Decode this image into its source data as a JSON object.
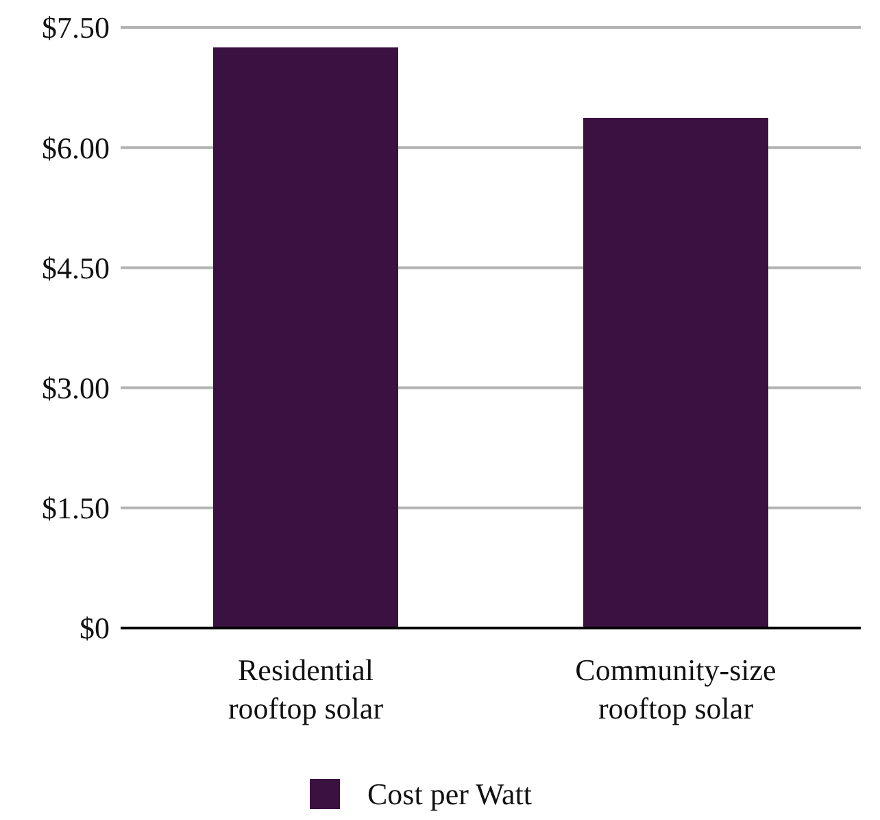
{
  "chart_data": {
    "type": "bar",
    "categories": [
      "Residential rooftop solar",
      "Community-size rooftop solar"
    ],
    "series": [
      {
        "name": "Cost per Watt",
        "color": "#3b1141",
        "values": [
          7.25,
          6.37
        ]
      }
    ],
    "ylim": [
      0,
      7.5
    ],
    "yticks": [
      {
        "value": 0,
        "label": "$0"
      },
      {
        "value": 1.5,
        "label": "$1.50"
      },
      {
        "value": 3,
        "label": "$3.00"
      },
      {
        "value": 4.5,
        "label": "$4.50"
      },
      {
        "value": 6,
        "label": "$6.00"
      },
      {
        "value": 7.5,
        "label": "$7.50"
      }
    ],
    "grid": "y",
    "legend": "bottom"
  }
}
